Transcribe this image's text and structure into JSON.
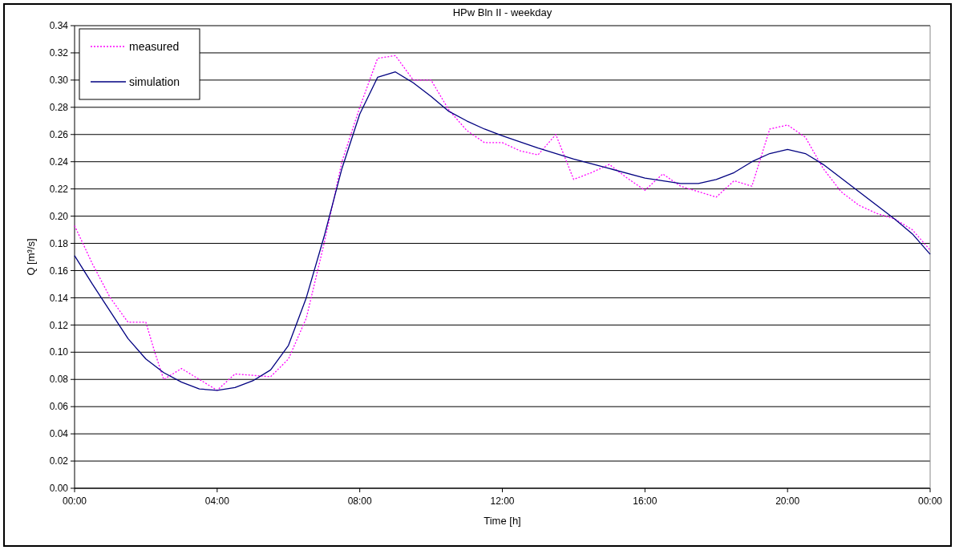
{
  "chart_data": {
    "type": "line",
    "title": "HPw Bln II - weekday",
    "xlabel": "Time [h]",
    "ylabel": "Q [m³/s]",
    "xlim": [
      0,
      24
    ],
    "xticks": [
      {
        "value": 0,
        "label": "00:00"
      },
      {
        "value": 4,
        "label": "04:00"
      },
      {
        "value": 8,
        "label": "08:00"
      },
      {
        "value": 12,
        "label": "12:00"
      },
      {
        "value": 16,
        "label": "16:00"
      },
      {
        "value": 20,
        "label": "20:00"
      },
      {
        "value": 24,
        "label": "00:00"
      }
    ],
    "ylim": [
      0,
      0.34
    ],
    "yticks": [
      {
        "value": 0,
        "label": "0.00"
      },
      {
        "value": 0.02,
        "label": "0.02"
      },
      {
        "value": 0.04,
        "label": "0.04"
      },
      {
        "value": 0.06,
        "label": "0.06"
      },
      {
        "value": 0.08,
        "label": "0.08"
      },
      {
        "value": 0.1,
        "label": "0.10"
      },
      {
        "value": 0.12,
        "label": "0.12"
      },
      {
        "value": 0.14,
        "label": "0.14"
      },
      {
        "value": 0.16,
        "label": "0.16"
      },
      {
        "value": 0.18,
        "label": "0.18"
      },
      {
        "value": 0.2,
        "label": "0.20"
      },
      {
        "value": 0.22,
        "label": "0.22"
      },
      {
        "value": 0.24,
        "label": "0.24"
      },
      {
        "value": 0.26,
        "label": "0.26"
      },
      {
        "value": 0.28,
        "label": "0.28"
      },
      {
        "value": 0.3,
        "label": "0.30"
      },
      {
        "value": 0.32,
        "label": "0.32"
      },
      {
        "value": 0.34,
        "label": "0.34"
      }
    ],
    "grid": "y",
    "legend": "top left",
    "series": [
      {
        "name": "measured",
        "color": "#ff00ff",
        "line_style": "dotted",
        "x": [
          0,
          0.5,
          1,
          1.5,
          2,
          2.25,
          2.5,
          3,
          3.5,
          4,
          4.5,
          5,
          5.5,
          6,
          6.5,
          7,
          7.5,
          8,
          8.5,
          9,
          9.5,
          10,
          10.5,
          11,
          11.5,
          12,
          12.5,
          13,
          13.5,
          14,
          14.5,
          15,
          15.5,
          16,
          16.5,
          17,
          17.5,
          18,
          18.5,
          19,
          19.5,
          20,
          20.5,
          21,
          21.5,
          22,
          22.5,
          23,
          23.5,
          24
        ],
        "values": [
          0.193,
          0.165,
          0.14,
          0.122,
          0.122,
          0.1,
          0.08,
          0.088,
          0.08,
          0.072,
          0.084,
          0.083,
          0.082,
          0.095,
          0.125,
          0.18,
          0.24,
          0.28,
          0.316,
          0.318,
          0.3,
          0.3,
          0.278,
          0.263,
          0.254,
          0.254,
          0.248,
          0.245,
          0.26,
          0.227,
          0.232,
          0.238,
          0.228,
          0.219,
          0.231,
          0.222,
          0.218,
          0.214,
          0.226,
          0.222,
          0.264,
          0.267,
          0.258,
          0.235,
          0.218,
          0.208,
          0.202,
          0.198,
          0.19,
          0.175
        ]
      },
      {
        "name": "simulation",
        "color": "#000080",
        "line_style": "solid",
        "x": [
          0,
          0.5,
          1,
          1.5,
          2,
          2.5,
          3,
          3.5,
          4,
          4.5,
          5,
          5.5,
          6,
          6.5,
          7,
          7.5,
          8,
          8.5,
          9,
          9.5,
          10,
          10.5,
          11,
          11.5,
          12,
          13,
          14,
          15,
          16,
          17,
          17.5,
          18,
          18.5,
          19,
          19.5,
          20,
          20.5,
          21,
          21.5,
          22,
          22.5,
          23,
          23.5,
          24
        ],
        "values": [
          0.171,
          0.15,
          0.13,
          0.11,
          0.095,
          0.085,
          0.078,
          0.073,
          0.072,
          0.074,
          0.079,
          0.087,
          0.105,
          0.14,
          0.185,
          0.235,
          0.275,
          0.302,
          0.306,
          0.298,
          0.288,
          0.277,
          0.27,
          0.264,
          0.259,
          0.25,
          0.242,
          0.235,
          0.228,
          0.224,
          0.224,
          0.227,
          0.232,
          0.24,
          0.246,
          0.249,
          0.246,
          0.238,
          0.228,
          0.218,
          0.208,
          0.198,
          0.187,
          0.172
        ]
      }
    ]
  }
}
